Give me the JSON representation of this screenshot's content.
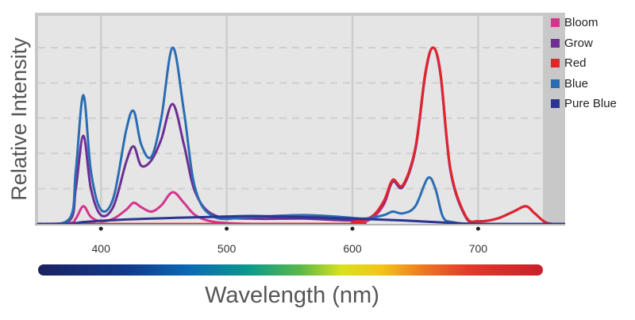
{
  "chart_data": {
    "type": "line",
    "title": "",
    "xlabel": "Wavelength (nm)",
    "ylabel": "Relative Intensity",
    "xlim": [
      350,
      770
    ],
    "ylim": [
      0,
      1.05
    ],
    "x_ticks": [
      "400",
      "500",
      "600",
      "700"
    ],
    "grid": true,
    "legend_position": "right",
    "series": [
      {
        "name": "Bloom",
        "color": "#d6338f",
        "x": [
          350,
          375,
          380,
          386,
          392,
          400,
          410,
          420,
          426,
          432,
          440,
          448,
          457,
          466,
          475,
          490,
          520,
          560,
          600,
          615,
          625,
          632,
          640,
          650,
          658,
          664,
          670,
          678,
          690,
          700,
          715,
          728,
          738,
          745,
          755,
          770
        ],
        "y": [
          0,
          0.005,
          0.03,
          0.1,
          0.04,
          0.015,
          0.03,
          0.08,
          0.12,
          0.095,
          0.07,
          0.105,
          0.18,
          0.12,
          0.05,
          0.012,
          0.0,
          0.0,
          0.0,
          0.03,
          0.11,
          0.24,
          0.21,
          0.42,
          0.85,
          1.0,
          0.85,
          0.3,
          0.04,
          0.015,
          0.03,
          0.07,
          0.1,
          0.06,
          0.005,
          0
        ]
      },
      {
        "name": "Grow",
        "color": "#6e2e93",
        "x": [
          350,
          375,
          380,
          386,
          392,
          400,
          410,
          420,
          426,
          432,
          440,
          448,
          457,
          466,
          475,
          490,
          520,
          560,
          600,
          615,
          625,
          632,
          640,
          650,
          658,
          664,
          670,
          678,
          690,
          700,
          715,
          728,
          738,
          745,
          755,
          770
        ],
        "y": [
          0,
          0.02,
          0.2,
          0.5,
          0.2,
          0.05,
          0.1,
          0.35,
          0.44,
          0.33,
          0.36,
          0.48,
          0.68,
          0.45,
          0.18,
          0.05,
          0.03,
          0.03,
          0.02,
          0.04,
          0.12,
          0.24,
          0.21,
          0.42,
          0.85,
          1.0,
          0.85,
          0.3,
          0.04,
          0.015,
          0.03,
          0.07,
          0.1,
          0.06,
          0.005,
          0
        ]
      },
      {
        "name": "Red",
        "color": "#e3242b",
        "x": [
          350,
          590,
          600,
          615,
          625,
          632,
          640,
          650,
          658,
          664,
          670,
          678,
          690,
          700,
          715,
          728,
          738,
          745,
          755,
          770
        ],
        "y": [
          0,
          0.0,
          0.01,
          0.04,
          0.13,
          0.25,
          0.22,
          0.43,
          0.86,
          1.0,
          0.86,
          0.31,
          0.045,
          0.015,
          0.03,
          0.07,
          0.1,
          0.06,
          0.005,
          0
        ]
      },
      {
        "name": "Blue",
        "color": "#2a6db3",
        "x": [
          350,
          375,
          380,
          386,
          392,
          400,
          410,
          420,
          426,
          432,
          440,
          448,
          457,
          466,
          475,
          490,
          520,
          560,
          590,
          610,
          625,
          632,
          640,
          650,
          660,
          666,
          672,
          680,
          700,
          770
        ],
        "y": [
          0,
          0.03,
          0.3,
          0.73,
          0.3,
          0.08,
          0.15,
          0.53,
          0.64,
          0.45,
          0.38,
          0.6,
          1.0,
          0.64,
          0.2,
          0.04,
          0.04,
          0.05,
          0.04,
          0.03,
          0.05,
          0.07,
          0.06,
          0.1,
          0.26,
          0.2,
          0.04,
          0.01,
          0.0,
          0
        ]
      },
      {
        "name": "Pure Blue",
        "color": "#2b3590",
        "x": [
          350,
          375,
          385,
          395,
          405,
          420,
          440,
          460,
          490,
          520,
          550,
          580,
          600,
          620,
          640,
          660,
          680,
          700,
          770
        ],
        "y": [
          0,
          0.0,
          0.01,
          0.015,
          0.02,
          0.025,
          0.03,
          0.035,
          0.04,
          0.045,
          0.04,
          0.035,
          0.03,
          0.025,
          0.02,
          0.012,
          0.005,
          0.0,
          0
        ]
      }
    ]
  }
}
